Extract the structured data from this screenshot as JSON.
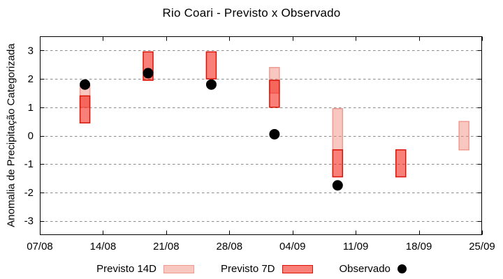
{
  "title": "Rio Coari - Previsto x Observado",
  "chart_data": {
    "type": "bar",
    "subtype": "forecast-range-bars-with-observed-points",
    "title": "Rio Coari - Previsto x Observado",
    "xlabel": "",
    "ylabel": "Anomalia de Precipitação Categorizada",
    "ylim": [
      -3.5,
      3.5
    ],
    "yticks": [
      3,
      2,
      1,
      0,
      -1,
      -2,
      -3
    ],
    "grid": true,
    "legend_position": "bottom",
    "x_tick_labels": [
      "07/08",
      "14/08",
      "21/08",
      "28/08",
      "04/09",
      "11/09",
      "18/09",
      "25/09"
    ],
    "x_tick_days": [
      0,
      7,
      14,
      21,
      28,
      35,
      42,
      49
    ],
    "xlim_days": [
      0,
      49
    ],
    "bars": [
      {
        "date": "12/08",
        "day": 5,
        "previsto_14d": [
          1.0,
          1.75
        ],
        "previsto_7d": [
          0.45,
          1.4
        ],
        "observado": 1.8
      },
      {
        "date": "19/08",
        "day": 12,
        "previsto_14d": null,
        "previsto_7d": [
          1.95,
          2.95
        ],
        "observado": 2.2
      },
      {
        "date": "26/08",
        "day": 19,
        "previsto_14d": null,
        "previsto_7d": [
          2.0,
          2.95
        ],
        "observado": 1.8
      },
      {
        "date": "02/09",
        "day": 26,
        "previsto_14d": [
          1.5,
          2.4
        ],
        "previsto_7d": [
          1.0,
          1.95
        ],
        "observado": 0.05
      },
      {
        "date": "09/09",
        "day": 33,
        "previsto_14d": [
          -0.5,
          0.95
        ],
        "previsto_7d": [
          -1.45,
          -0.5
        ],
        "observado": -1.75
      },
      {
        "date": "16/09",
        "day": 40,
        "previsto_14d": null,
        "previsto_7d": [
          -1.45,
          -0.5
        ],
        "observado": null
      },
      {
        "date": "23/09",
        "day": 47,
        "previsto_14d": [
          -0.5,
          0.5
        ],
        "previsto_7d": null,
        "observado": null
      }
    ],
    "legend": [
      {
        "label": "Previsto 14D",
        "swatch": "box-14d"
      },
      {
        "label": "Previsto 7D",
        "swatch": "box-7d"
      },
      {
        "label": "Observado",
        "swatch": "dot"
      }
    ],
    "colors": {
      "previsto_14d_fill": "rgba(240,130,115,0.45)",
      "previsto_14d_border": "#ee9a91",
      "previsto_7d_fill": "rgba(243,28,16,0.56)",
      "previsto_7d_border": "#dd1206",
      "observado": "#000000",
      "grid": "#8c8c8c",
      "axis": "#000000"
    }
  }
}
